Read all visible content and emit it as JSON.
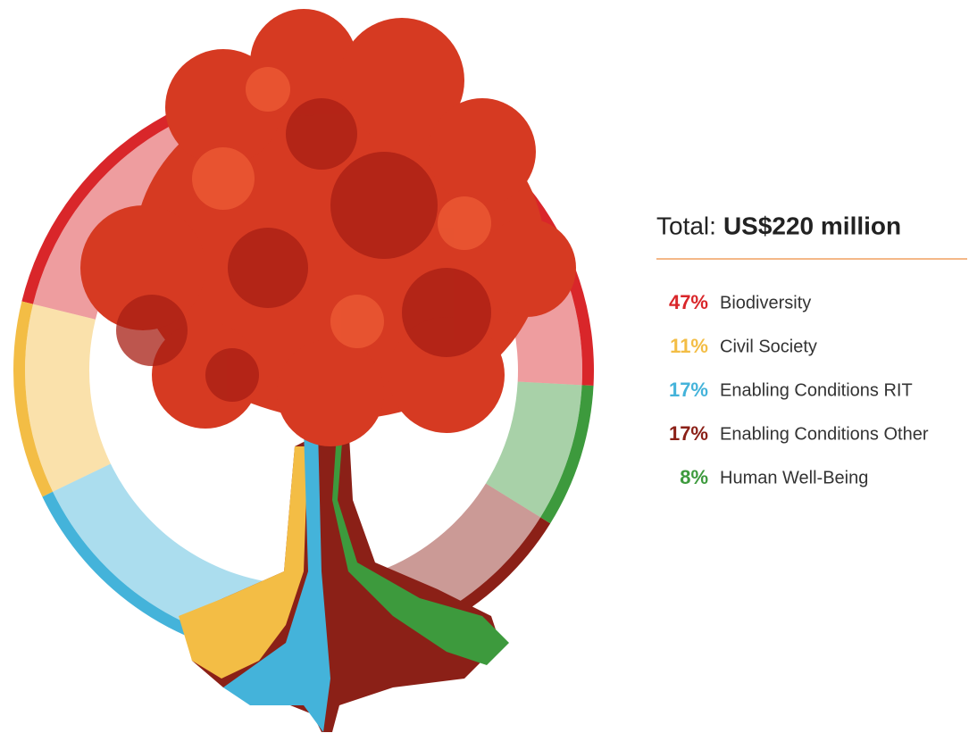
{
  "chart_data": {
    "type": "donut",
    "title": "Total:",
    "total": "US$220 million",
    "categories": [
      "Biodiversity",
      "Civil Society",
      "Enabling Conditions RIT",
      "Enabling Conditions Other",
      "Human Well-Being"
    ],
    "values": [
      47,
      11,
      17,
      17,
      8
    ],
    "value_labels": [
      "47%",
      "11%",
      "17%",
      "17%",
      "8%"
    ],
    "colors": [
      "#d9262a",
      "#f3bd45",
      "#44b3da",
      "#8b2017",
      "#3d9a3d"
    ]
  }
}
